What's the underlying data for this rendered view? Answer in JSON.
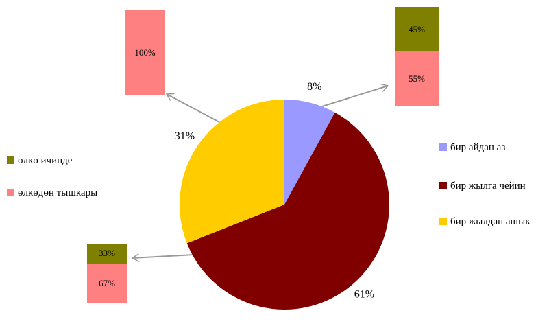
{
  "chart_data": [
    {
      "type": "pie",
      "categories": [
        "бир айдан аз",
        "бир жылга чейин",
        "бир жылдан ашык"
      ],
      "values": [
        8,
        61,
        31
      ],
      "value_labels": [
        "8%",
        "61%",
        "31%"
      ],
      "colors": [
        "#9999ff",
        "#800000",
        "#ffcc00"
      ]
    },
    {
      "type": "bar",
      "stacked": true,
      "categories": [
        null,
        null,
        null
      ],
      "series": [
        {
          "name": "өлкө ичинде",
          "color": "#808000",
          "values": [
            45,
            33,
            null
          ],
          "value_labels": [
            "45%",
            "33%",
            null
          ]
        },
        {
          "name": "өлкөдөн тышкары",
          "color": "#ff8080",
          "values": [
            55,
            67,
            100
          ],
          "value_labels": [
            "55%",
            "67%",
            "100%"
          ]
        }
      ]
    }
  ]
}
